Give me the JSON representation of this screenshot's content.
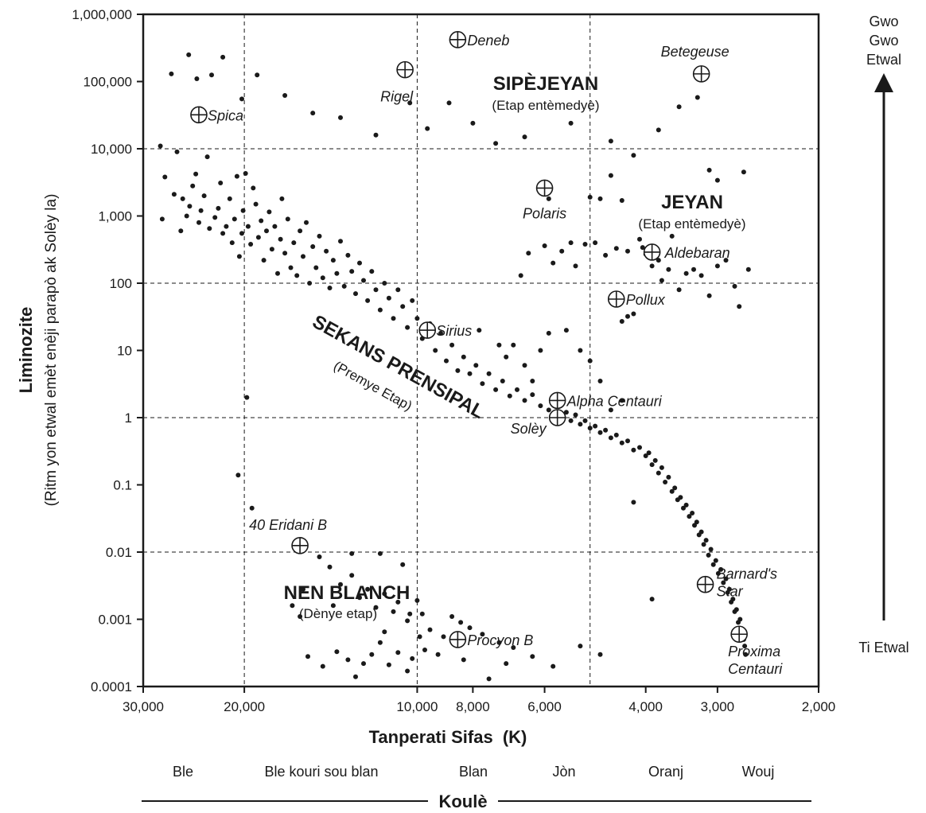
{
  "chart_data": {
    "type": "scatter",
    "title": "",
    "xlabel": "Tanperati Sifas",
    "xlabel_unit": "(K)",
    "ylabel": "Liminozite",
    "ylabel_sub": "(Ritm yon etwal emèt enèji parapò ak Solèy la)",
    "x_scale": "log",
    "x_reversed": true,
    "y_scale": "log",
    "xlim": [
      30000,
      2000
    ],
    "ylim": [
      0.0001,
      1000000
    ],
    "x_ticks": [
      30000,
      20000,
      10000,
      8000,
      6000,
      4000,
      3000,
      2000
    ],
    "x_tick_labels": [
      "30,000",
      "20,000",
      "10,000",
      "8,000",
      "6,000",
      "4,000",
      "3,000",
      "2,000"
    ],
    "y_ticks": [
      0.0001,
      0.001,
      0.01,
      0.1,
      1,
      10,
      100,
      1000,
      10000,
      100000,
      1000000
    ],
    "y_tick_labels": [
      "0.0001",
      "0.001",
      "0.01",
      "0.1",
      "1",
      "10",
      "100",
      "1,000",
      "10,000",
      "100,000",
      "1,000,000"
    ],
    "grid_x": [
      20000,
      10000,
      5000
    ],
    "grid_y": [
      0.01,
      1,
      100,
      10000
    ],
    "regions": [
      {
        "name": "SIPÈJEYAN",
        "sub": "(Etap entèmedyè)"
      },
      {
        "name": "JEYAN",
        "sub": "(Etap entèmedyè)"
      },
      {
        "name": "SEKANS PRENSIPAL",
        "sub": "(Premye Etap)"
      },
      {
        "name": "NEN BLANCH",
        "sub": "(Dènye etap)"
      }
    ],
    "named_stars": [
      {
        "name": "Deneb",
        "x": 8500,
        "y": 420000
      },
      {
        "name": "Rigel",
        "x": 10500,
        "y": 150000
      },
      {
        "name": "Betegeuse",
        "x": 3200,
        "y": 130000
      },
      {
        "name": "Spica",
        "x": 24000,
        "y": 32000
      },
      {
        "name": "Polaris",
        "x": 6000,
        "y": 2600
      },
      {
        "name": "Aldebaran",
        "x": 3900,
        "y": 290
      },
      {
        "name": "Pollux",
        "x": 4500,
        "y": 58
      },
      {
        "name": "Sirius",
        "x": 9600,
        "y": 20
      },
      {
        "name": "Alpha Centauri",
        "x": 5700,
        "y": 1.8
      },
      {
        "name": "Solèy",
        "x": 5700,
        "y": 1.0
      },
      {
        "name": "40 Eridani B",
        "x": 16000,
        "y": 0.0125
      },
      {
        "name": "Barnard's Star",
        "x": 3150,
        "y": 0.0033
      },
      {
        "name": "Procyon B",
        "x": 8500,
        "y": 0.0005
      },
      {
        "name": "Proxima Centauri",
        "x": 2750,
        "y": 0.0006
      }
    ],
    "points": [
      [
        28000,
        11000
      ],
      [
        27500,
        3800
      ],
      [
        27800,
        900
      ],
      [
        26500,
        2100
      ],
      [
        26200,
        9000
      ],
      [
        25600,
        1800
      ],
      [
        25800,
        600
      ],
      [
        25200,
        1000
      ],
      [
        24900,
        1400
      ],
      [
        24600,
        2800
      ],
      [
        24300,
        4200
      ],
      [
        24000,
        800
      ],
      [
        23800,
        1200
      ],
      [
        23200,
        7600
      ],
      [
        23500,
        2000
      ],
      [
        23000,
        650
      ],
      [
        22500,
        950
      ],
      [
        22200,
        1300
      ],
      [
        22000,
        3100
      ],
      [
        21800,
        550
      ],
      [
        21500,
        700
      ],
      [
        21200,
        1800
      ],
      [
        21000,
        400
      ],
      [
        20800,
        900
      ],
      [
        20600,
        3900
      ],
      [
        20400,
        250
      ],
      [
        20200,
        550
      ],
      [
        20100,
        1200
      ],
      [
        19900,
        4300
      ],
      [
        19700,
        700
      ],
      [
        19500,
        380
      ],
      [
        19300,
        2600
      ],
      [
        19100,
        1500
      ],
      [
        18900,
        480
      ],
      [
        18700,
        850
      ],
      [
        18500,
        220
      ],
      [
        18300,
        600
      ],
      [
        18100,
        1150
      ],
      [
        17900,
        320
      ],
      [
        17700,
        700
      ],
      [
        17500,
        140
      ],
      [
        17300,
        450
      ],
      [
        17200,
        1800
      ],
      [
        17000,
        280
      ],
      [
        16800,
        900
      ],
      [
        16600,
        170
      ],
      [
        16400,
        400
      ],
      [
        16200,
        130
      ],
      [
        16000,
        600
      ],
      [
        15800,
        250
      ],
      [
        15600,
        800
      ],
      [
        15400,
        100
      ],
      [
        15200,
        350
      ],
      [
        15000,
        170
      ],
      [
        14800,
        500
      ],
      [
        14600,
        120
      ],
      [
        14400,
        300
      ],
      [
        14200,
        85
      ],
      [
        14000,
        220
      ],
      [
        13800,
        140
      ],
      [
        13600,
        420
      ],
      [
        13400,
        90
      ],
      [
        13200,
        260
      ],
      [
        13000,
        150
      ],
      [
        12800,
        70
      ],
      [
        12600,
        200
      ],
      [
        12400,
        110
      ],
      [
        12200,
        55
      ],
      [
        12000,
        150
      ],
      [
        11800,
        80
      ],
      [
        11600,
        40
      ],
      [
        11400,
        100
      ],
      [
        11200,
        60
      ],
      [
        11000,
        30
      ],
      [
        10800,
        80
      ],
      [
        10600,
        45
      ],
      [
        10400,
        22
      ],
      [
        10200,
        55
      ],
      [
        10000,
        30
      ],
      [
        9800,
        15
      ],
      [
        9500,
        25
      ],
      [
        9300,
        10
      ],
      [
        9100,
        18
      ],
      [
        8900,
        7
      ],
      [
        8700,
        12
      ],
      [
        8500,
        5
      ],
      [
        8300,
        8
      ],
      [
        8100,
        4.5
      ],
      [
        7900,
        6
      ],
      [
        7700,
        3.2
      ],
      [
        7500,
        4.5
      ],
      [
        7300,
        2.6
      ],
      [
        7100,
        3.5
      ],
      [
        6900,
        2.1
      ],
      [
        6700,
        2.6
      ],
      [
        6500,
        1.8
      ],
      [
        6300,
        2.2
      ],
      [
        6100,
        1.5
      ],
      [
        5900,
        1.3
      ],
      [
        5500,
        1.2
      ],
      [
        5400,
        0.9
      ],
      [
        5300,
        1.1
      ],
      [
        5200,
        0.8
      ],
      [
        5100,
        0.9
      ],
      [
        5000,
        0.7
      ],
      [
        4900,
        0.75
      ],
      [
        4800,
        0.6
      ],
      [
        4700,
        0.65
      ],
      [
        4600,
        0.5
      ],
      [
        4500,
        0.55
      ],
      [
        4400,
        0.42
      ],
      [
        4300,
        0.45
      ],
      [
        4200,
        0.33
      ],
      [
        4100,
        0.36
      ],
      [
        4000,
        0.27
      ],
      [
        3950,
        0.3
      ],
      [
        3900,
        0.2
      ],
      [
        3850,
        0.23
      ],
      [
        3800,
        0.15
      ],
      [
        3750,
        0.18
      ],
      [
        3700,
        0.11
      ],
      [
        3650,
        0.13
      ],
      [
        3600,
        0.08
      ],
      [
        3560,
        0.09
      ],
      [
        3520,
        0.06
      ],
      [
        3480,
        0.065
      ],
      [
        3440,
        0.045
      ],
      [
        3400,
        0.05
      ],
      [
        3360,
        0.034
      ],
      [
        3320,
        0.038
      ],
      [
        3290,
        0.025
      ],
      [
        3260,
        0.028
      ],
      [
        3230,
        0.018
      ],
      [
        3200,
        0.02
      ],
      [
        3170,
        0.013
      ],
      [
        3140,
        0.015
      ],
      [
        3110,
        0.009
      ],
      [
        3080,
        0.011
      ],
      [
        3050,
        0.0065
      ],
      [
        3020,
        0.0075
      ],
      [
        2990,
        0.0048
      ],
      [
        2960,
        0.0055
      ],
      [
        2930,
        0.0035
      ],
      [
        2900,
        0.004
      ],
      [
        2880,
        0.0025
      ],
      [
        2860,
        0.0028
      ],
      [
        2840,
        0.0018
      ],
      [
        2820,
        0.002
      ],
      [
        2800,
        0.0013
      ],
      [
        2780,
        0.0014
      ],
      [
        2760,
        0.0009
      ],
      [
        2740,
        0.001
      ],
      [
        2720,
        0.0007
      ],
      [
        2700,
        0.0005
      ],
      [
        2690,
        0.0004
      ],
      [
        2680,
        0.0003
      ],
      [
        26800,
        130000
      ],
      [
        25000,
        250000
      ],
      [
        24200,
        110000
      ],
      [
        22800,
        125000
      ],
      [
        21800,
        230000
      ],
      [
        20200,
        55000
      ],
      [
        19000,
        125000
      ],
      [
        17000,
        62000
      ],
      [
        15200,
        34000
      ],
      [
        13600,
        29000
      ],
      [
        11800,
        16000
      ],
      [
        10300,
        48000
      ],
      [
        9600,
        20000
      ],
      [
        8800,
        48000
      ],
      [
        8000,
        24000
      ],
      [
        7300,
        12000
      ],
      [
        6500,
        15000
      ],
      [
        5400,
        24000
      ],
      [
        4600,
        13000
      ],
      [
        4200,
        8000
      ],
      [
        3800,
        19000
      ],
      [
        3500,
        42000
      ],
      [
        3250,
        58000
      ],
      [
        3100,
        4800
      ],
      [
        3000,
        3400
      ],
      [
        2700,
        4500
      ],
      [
        5900,
        1800
      ],
      [
        5400,
        400
      ],
      [
        5000,
        1900
      ],
      [
        4800,
        1800
      ],
      [
        4600,
        4000
      ],
      [
        4400,
        1700
      ],
      [
        4300,
        300
      ],
      [
        4100,
        450
      ],
      [
        4050,
        340
      ],
      [
        4000,
        270
      ],
      [
        3900,
        180
      ],
      [
        3800,
        220
      ],
      [
        3750,
        110
      ],
      [
        3650,
        160
      ],
      [
        3600,
        500
      ],
      [
        3500,
        80
      ],
      [
        3400,
        140
      ],
      [
        3300,
        160
      ],
      [
        3200,
        130
      ],
      [
        3100,
        65
      ],
      [
        3000,
        180
      ],
      [
        2900,
        220
      ],
      [
        2800,
        90
      ],
      [
        2750,
        45
      ],
      [
        2650,
        160
      ],
      [
        6600,
        130
      ],
      [
        6400,
        280
      ],
      [
        6000,
        360
      ],
      [
        5800,
        200
      ],
      [
        5600,
        300
      ],
      [
        5300,
        180
      ],
      [
        5100,
        380
      ],
      [
        4900,
        400
      ],
      [
        4700,
        260
      ],
      [
        4500,
        330
      ],
      [
        4200,
        35
      ],
      [
        4300,
        32
      ],
      [
        4400,
        27
      ],
      [
        7800,
        20
      ],
      [
        7200,
        12
      ],
      [
        7000,
        8
      ],
      [
        6800,
        12
      ],
      [
        6500,
        6
      ],
      [
        6300,
        3.5
      ],
      [
        6100,
        10
      ],
      [
        5900,
        18
      ],
      [
        5500,
        20
      ],
      [
        5200,
        10
      ],
      [
        5000,
        7
      ],
      [
        4800,
        3.5
      ],
      [
        4600,
        1.3
      ],
      [
        4400,
        1.8
      ],
      [
        4200,
        0.055
      ],
      [
        3900,
        0.002
      ],
      [
        19800,
        2
      ],
      [
        20500,
        0.14
      ],
      [
        19400,
        0.045
      ],
      [
        16000,
        0.0011
      ],
      [
        15800,
        0.0028
      ],
      [
        14800,
        0.0085
      ],
      [
        14200,
        0.006
      ],
      [
        13600,
        0.0033
      ],
      [
        13000,
        0.0045
      ],
      [
        12600,
        0.0021
      ],
      [
        12200,
        0.0028
      ],
      [
        11800,
        0.0015
      ],
      [
        11400,
        0.0024
      ],
      [
        11000,
        0.0013
      ],
      [
        10800,
        0.0018
      ],
      [
        10400,
        0.00095
      ],
      [
        10000,
        0.0019
      ],
      [
        9800,
        0.0012
      ],
      [
        9500,
        0.0007
      ],
      [
        9000,
        0.00055
      ],
      [
        8700,
        0.0011
      ],
      [
        8400,
        0.0009
      ],
      [
        8100,
        0.00075
      ],
      [
        7700,
        0.0006
      ],
      [
        7200,
        0.00045
      ],
      [
        6800,
        0.00038
      ],
      [
        6300,
        0.00028
      ],
      [
        5800,
        0.0002
      ],
      [
        5200,
        0.0004
      ],
      [
        4800,
        0.0003
      ],
      [
        14600,
        0.0002
      ],
      [
        13800,
        0.00033
      ],
      [
        13200,
        0.00025
      ],
      [
        12800,
        0.00014
      ],
      [
        12400,
        0.00022
      ],
      [
        12000,
        0.0003
      ],
      [
        11600,
        0.00045
      ],
      [
        11200,
        0.00021
      ],
      [
        10800,
        0.00032
      ],
      [
        10400,
        0.00017
      ],
      [
        10200,
        0.00026
      ],
      [
        9700,
        0.00035
      ],
      [
        9200,
        0.0003
      ],
      [
        8300,
        0.00025
      ],
      [
        7500,
        0.00013
      ],
      [
        7000,
        0.00022
      ],
      [
        10600,
        0.0065
      ],
      [
        11600,
        0.0095
      ],
      [
        13000,
        0.0095
      ],
      [
        15500,
        0.00028
      ],
      [
        14000,
        0.0016
      ],
      [
        16500,
        0.0016
      ],
      [
        10300,
        0.0012
      ],
      [
        11400,
        0.00065
      ],
      [
        9900,
        0.00055
      ]
    ],
    "point_color": "#1a1a1a",
    "color_band_title": "Koulè",
    "color_bands": [
      "Ble",
      "Ble kouri sou blan",
      "Blan",
      "Jòn",
      "Oranj",
      "Wouj"
    ],
    "arrow_top_label": [
      "Gwo",
      "Gwo",
      "Etwal"
    ],
    "arrow_bottom_label": "Ti Etwal"
  }
}
